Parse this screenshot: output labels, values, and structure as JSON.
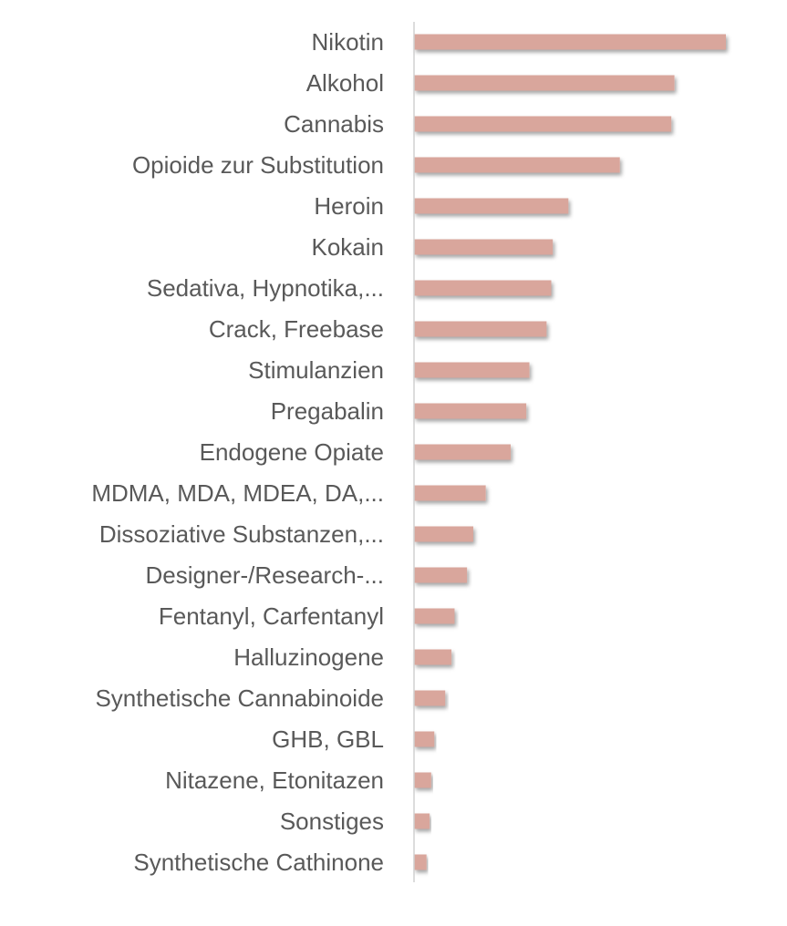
{
  "chart_data": {
    "type": "bar",
    "orientation": "horizontal",
    "title": "",
    "xlabel": "",
    "ylabel": "",
    "grid": false,
    "legend": "none",
    "bar_color": "#d9a69c",
    "label_color": "#595959",
    "xlim": [
      0,
      100
    ],
    "categories": [
      "Nikotin",
      "Alkohol",
      "Cannabis",
      "Opioide zur Substitution",
      "Heroin",
      "Kokain",
      "Sedativa, Hypnotika,...",
      "Crack, Freebase",
      "Stimulanzien",
      "Pregabalin",
      "Endogene Opiate",
      "MDMA, MDA, MDEA, DA,...",
      "Dissoziative Substanzen,...",
      "Designer-/Research-...",
      "Fentanyl, Carfentanyl",
      "Halluzinogene",
      "Synthetische Cannabinoide",
      "GHB, GBL",
      "Nitazene, Etonitazen",
      "Sonstiges",
      "Synthetische Cathinone"
    ],
    "values": [
      100,
      83.5,
      82.5,
      66,
      49.5,
      44.5,
      44,
      42.5,
      37,
      36,
      31,
      23,
      19,
      17,
      13,
      12,
      10,
      6.5,
      5.5,
      5,
      4
    ]
  }
}
